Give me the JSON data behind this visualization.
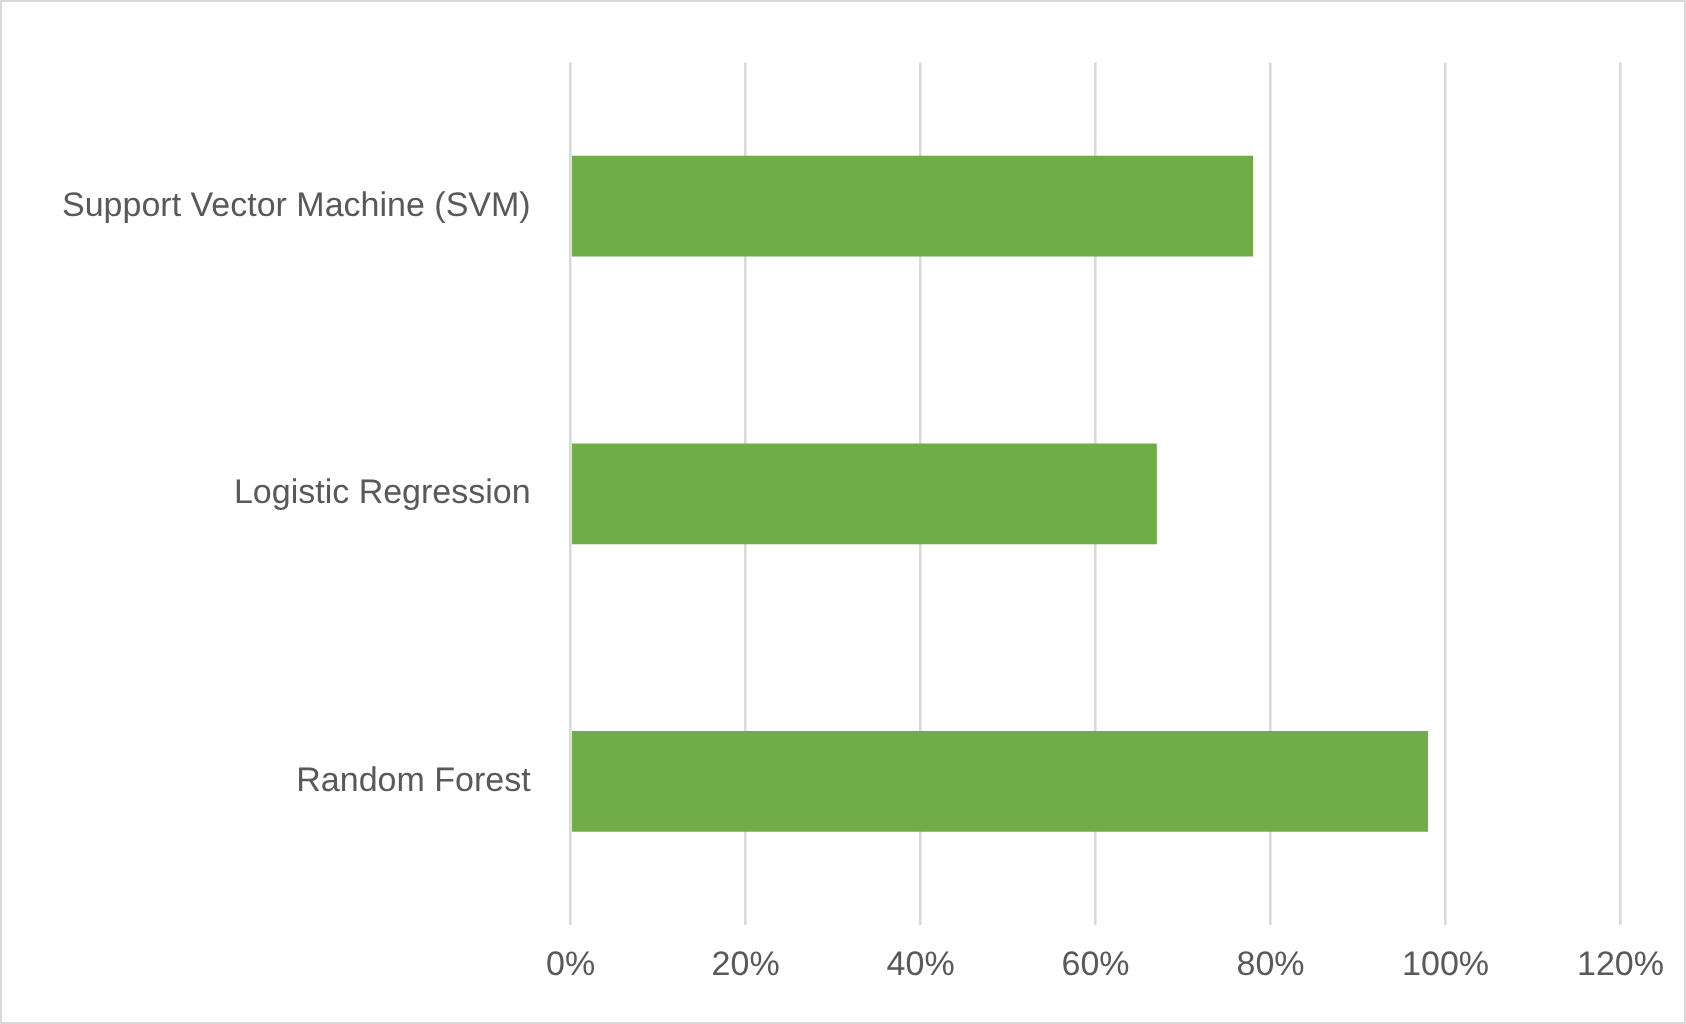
{
  "chart_data": {
    "type": "bar",
    "orientation": "horizontal",
    "categories": [
      "Support Vector Machine (SVM)",
      "Logistic Regression",
      "Random Forest"
    ],
    "values": [
      78,
      67,
      98
    ],
    "color": "#70ad47",
    "xlim": [
      0,
      120
    ],
    "xticks": [
      {
        "value": 0,
        "label": "0%"
      },
      {
        "value": 20,
        "label": "20%"
      },
      {
        "value": 40,
        "label": "40%"
      },
      {
        "value": 60,
        "label": "60%"
      },
      {
        "value": 80,
        "label": "80%"
      },
      {
        "value": 100,
        "label": "100%"
      },
      {
        "value": 120,
        "label": "120%"
      }
    ],
    "grid": "x"
  }
}
